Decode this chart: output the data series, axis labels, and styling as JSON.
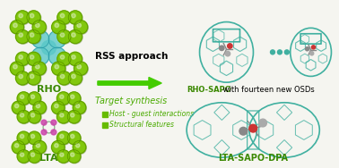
{
  "bg_color": "#f5f5f0",
  "rho_label": "RHO",
  "lta_label": "LTA",
  "rho_sapo_bold": "RHO-SAPO",
  "rho_sapo_rest": " with fourteen new OSDs",
  "lta_sapo_label": "LTA-SAPO-DPA",
  "arrow_text1": "RSS approach",
  "arrow_text2": "Target synthesis",
  "bullet1": "Host - guest interactions",
  "bullet2": "Structural features",
  "green_dark": "#4a7a00",
  "green_light": "#7ec800",
  "blue_cage": "#5bc8c8",
  "teal_cage": "#40b0a0",
  "arrow_green": "#44cc00",
  "text_green": "#4aaa00",
  "text_bold_green": "#3a8800",
  "bullet_green": "#66bb00"
}
